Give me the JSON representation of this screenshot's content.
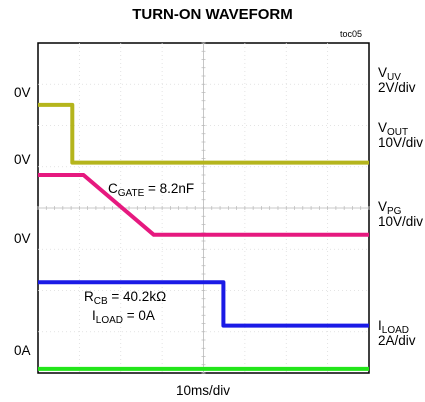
{
  "chart_data": {
    "type": "line",
    "title": "TURN-ON WAVEFORM",
    "figure_id": "toc05",
    "time_scale": "10ms/div",
    "x_divisions": 8,
    "y_divisions": 8,
    "x_range_ms": [
      0,
      80
    ],
    "grid": true,
    "series": [
      {
        "name": "V_UV",
        "scale": "2V/div",
        "color": "#b5b51c",
        "ground_label": "0V",
        "ground_div": 1.5,
        "x_ms": [
          0,
          8.3,
          8.3,
          80
        ],
        "y_div": [
          1.5,
          1.5,
          2.9,
          2.9
        ]
      },
      {
        "name": "V_OUT",
        "scale": "10V/div",
        "color": "#e6197f",
        "ground_label": "0V",
        "ground_div": 3.2,
        "x_ms": [
          0,
          11,
          28,
          80
        ],
        "y_div": [
          3.2,
          3.2,
          4.65,
          4.65
        ]
      },
      {
        "name": "V_PG",
        "scale": "10V/div",
        "color": "#1a1ae6",
        "ground_label": "0V",
        "ground_div": 5.8,
        "x_ms": [
          0,
          44.8,
          44.8,
          80
        ],
        "y_div": [
          5.8,
          5.8,
          6.85,
          6.85
        ]
      },
      {
        "name": "I_LOAD",
        "scale": "2A/div",
        "color": "#22e61a",
        "ground_label": "0A",
        "ground_div": 7.9,
        "x_ms": [
          0,
          80
        ],
        "y_div": [
          7.9,
          7.9
        ]
      }
    ],
    "annotations": [
      {
        "main": "C",
        "sub": "GATE",
        "rest": " = 8.2nF"
      },
      {
        "main": "R",
        "sub": "CB",
        "rest": " = 40.2kΩ"
      },
      {
        "main": "I",
        "sub": "LOAD",
        "rest": " = 0A"
      }
    ]
  }
}
